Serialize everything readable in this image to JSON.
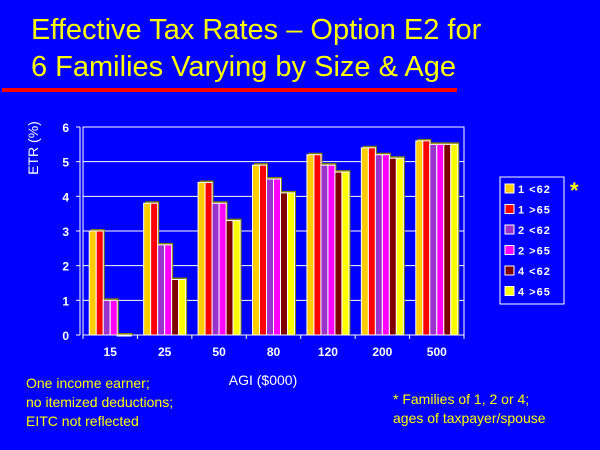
{
  "title_line1": "Effective Tax Rates – Option E2 for",
  "title_line2": "6 Families Varying by Size & Age",
  "legend_star": "*",
  "note_left": [
    "One income earner;",
    "no itemized deductions;",
    "EITC not reflected"
  ],
  "note_right": [
    "* Families of 1, 2 or 4;",
    "ages of taxpayer/spouse"
  ],
  "chart_data": {
    "type": "bar",
    "title": "Effective Tax Rates – Option E2 for 6 Families Varying by Size & Age",
    "xlabel": "AGI ($000)",
    "ylabel": "ETR (%)",
    "ylim": [
      0,
      6
    ],
    "yticks": [
      0,
      1,
      2,
      3,
      4,
      5,
      6
    ],
    "grid": true,
    "legend_position": "right",
    "categories": [
      "15",
      "25",
      "50",
      "80",
      "120",
      "200",
      "500"
    ],
    "series": [
      {
        "name": "1 <62",
        "color": "#ffcc00",
        "values": [
          3.0,
          3.8,
          4.4,
          4.9,
          5.2,
          5.4,
          5.6
        ]
      },
      {
        "name": "1 >65",
        "color": "#ff0000",
        "values": [
          3.0,
          3.8,
          4.4,
          4.9,
          5.2,
          5.4,
          5.6
        ]
      },
      {
        "name": "2 <62",
        "color": "#9933cc",
        "values": [
          1.0,
          2.6,
          3.8,
          4.5,
          4.9,
          5.2,
          5.5
        ]
      },
      {
        "name": "2 >65",
        "color": "#ff00ff",
        "values": [
          1.0,
          2.6,
          3.8,
          4.5,
          4.9,
          5.2,
          5.5
        ]
      },
      {
        "name": "4 <62",
        "color": "#800000",
        "values": [
          0.0,
          1.6,
          3.3,
          4.1,
          4.7,
          5.1,
          5.5
        ]
      },
      {
        "name": "4 >65",
        "color": "#ffff00",
        "values": [
          0.0,
          1.6,
          3.3,
          4.1,
          4.7,
          5.1,
          5.5
        ]
      }
    ]
  }
}
